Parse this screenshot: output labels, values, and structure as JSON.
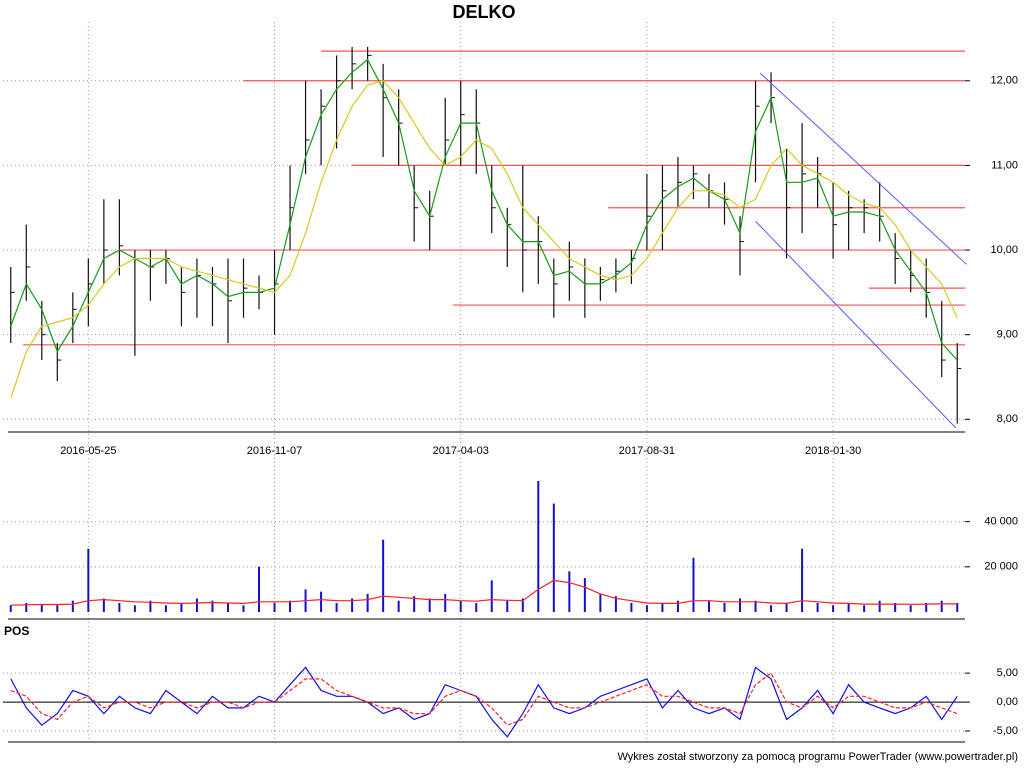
{
  "footer": "Wykres został stworzony za pomocą programu PowerTrader (www.powertrader.pl)",
  "chart_data": [
    {
      "type": "ohlc",
      "title": "DELKO",
      "categories": [
        null,
        null,
        null,
        null,
        null,
        "2016-05-25",
        null,
        null,
        null,
        null,
        null,
        null,
        null,
        null,
        null,
        null,
        null,
        "2016-11-07",
        null,
        null,
        null,
        null,
        null,
        null,
        null,
        null,
        null,
        null,
        null,
        "2017-04-03",
        null,
        null,
        null,
        null,
        null,
        null,
        null,
        null,
        null,
        null,
        null,
        "2017-08-31",
        null,
        null,
        null,
        null,
        null,
        null,
        null,
        null,
        null,
        null,
        null,
        "2018-01-30",
        null,
        null,
        null,
        null,
        null,
        null,
        null,
        null
      ],
      "high": [
        9.8,
        10.3,
        9.4,
        8.9,
        9.5,
        9.9,
        10.6,
        10.6,
        10.0,
        10.0,
        10.0,
        9.8,
        9.9,
        9.8,
        9.9,
        9.9,
        9.7,
        10.0,
        11.0,
        12.0,
        11.9,
        12.3,
        12.4,
        12.4,
        12.2,
        11.9,
        11.0,
        10.7,
        11.8,
        12.0,
        11.9,
        11.0,
        10.5,
        11.0,
        10.4,
        9.9,
        10.1,
        9.9,
        9.8,
        9.9,
        10.0,
        10.9,
        11.0,
        11.1,
        11.0,
        10.9,
        10.8,
        10.4,
        12.0,
        12.1,
        11.2,
        11.5,
        11.1,
        10.8,
        10.7,
        10.6,
        10.8,
        10.2,
        10.0,
        9.9,
        9.4,
        8.9
      ],
      "low": [
        8.9,
        9.4,
        8.7,
        8.45,
        8.9,
        9.1,
        9.6,
        9.7,
        8.75,
        9.4,
        9.6,
        9.1,
        9.2,
        9.1,
        8.9,
        9.2,
        9.3,
        9.0,
        10.0,
        10.9,
        11.0,
        11.2,
        11.9,
        12.0,
        11.1,
        11.0,
        10.1,
        10.0,
        11.0,
        11.0,
        10.9,
        10.2,
        9.8,
        9.5,
        9.6,
        9.2,
        9.4,
        9.2,
        9.4,
        9.5,
        9.6,
        10.0,
        10.0,
        10.5,
        10.6,
        10.5,
        10.3,
        9.7,
        10.8,
        11.5,
        9.9,
        10.2,
        10.5,
        9.9,
        10.0,
        10.2,
        10.1,
        9.6,
        9.5,
        9.2,
        8.5,
        7.95
      ],
      "close": [
        9.5,
        9.8,
        9.0,
        8.7,
        9.3,
        9.6,
        10.0,
        10.05,
        9.9,
        9.8,
        9.9,
        9.5,
        9.7,
        9.6,
        9.4,
        9.55,
        9.5,
        9.6,
        10.5,
        11.3,
        11.7,
        12.0,
        12.2,
        12.3,
        11.8,
        11.5,
        10.5,
        10.4,
        11.3,
        11.6,
        11.5,
        10.5,
        10.3,
        10.0,
        10.1,
        9.6,
        9.8,
        9.6,
        9.65,
        9.75,
        9.9,
        10.4,
        10.7,
        10.8,
        10.9,
        10.7,
        10.6,
        10.1,
        11.7,
        11.8,
        10.5,
        10.9,
        10.9,
        10.3,
        10.5,
        10.5,
        10.4,
        9.9,
        9.7,
        9.5,
        8.7,
        8.6
      ],
      "bar_color": "#111111",
      "series": [
        {
          "color": "#1a9a1a",
          "values": [
            9.1,
            9.6,
            9.3,
            8.8,
            9.1,
            9.5,
            9.9,
            10.0,
            9.9,
            9.8,
            9.9,
            9.6,
            9.7,
            9.6,
            9.45,
            9.5,
            9.5,
            9.55,
            10.3,
            11.1,
            11.6,
            11.9,
            12.1,
            12.25,
            11.9,
            11.5,
            10.7,
            10.4,
            11.1,
            11.5,
            11.5,
            10.7,
            10.3,
            10.1,
            10.1,
            9.7,
            9.75,
            9.6,
            9.6,
            9.7,
            9.85,
            10.3,
            10.6,
            10.75,
            10.85,
            10.7,
            10.6,
            10.2,
            11.4,
            11.8,
            10.8,
            10.8,
            10.85,
            10.4,
            10.45,
            10.45,
            10.4,
            10.0,
            9.75,
            9.5,
            8.9,
            8.7
          ]
        },
        {
          "color": "#d8c820",
          "values": [
            8.25,
            8.8,
            9.1,
            9.15,
            9.2,
            9.35,
            9.6,
            9.8,
            9.9,
            9.9,
            9.9,
            9.8,
            9.75,
            9.7,
            9.65,
            9.6,
            9.55,
            9.5,
            9.7,
            10.2,
            10.8,
            11.3,
            11.7,
            11.95,
            12.0,
            11.8,
            11.5,
            11.2,
            11.0,
            11.1,
            11.3,
            11.2,
            10.9,
            10.5,
            10.3,
            10.1,
            9.9,
            9.8,
            9.7,
            9.65,
            9.7,
            9.9,
            10.2,
            10.5,
            10.7,
            10.7,
            10.65,
            10.5,
            10.6,
            11.0,
            11.2,
            11.0,
            10.9,
            10.8,
            10.65,
            10.55,
            10.5,
            10.3,
            10.0,
            9.8,
            9.6,
            9.2
          ]
        }
      ],
      "levels": [
        {
          "value": 12.35,
          "start": 20,
          "color": "#ff5050"
        },
        {
          "value": 12.0,
          "start": 15,
          "color": "#ff5050"
        },
        {
          "value": 11.0,
          "start": 22,
          "color": "#ff5050"
        },
        {
          "value": 10.5,
          "start": 38.5,
          "color": "#ff5050"
        },
        {
          "value": 10.0,
          "start": 7,
          "color": "#ff5050"
        },
        {
          "value": 9.55,
          "start": 55.3,
          "color": "#ff5050"
        },
        {
          "value": 9.35,
          "start": 28.5,
          "color": "#ff5050"
        },
        {
          "value": 8.88,
          "start": 0.8,
          "color": "#ff5050"
        }
      ],
      "trendlines": [
        {
          "x0": 48.3,
          "y0": 12.09,
          "x1": 61.6,
          "y1": 9.83,
          "color": "#5a5af0"
        },
        {
          "x0": 48.0,
          "y0": 10.34,
          "x1": 60.9,
          "y1": 7.9,
          "color": "#5a5af0"
        }
      ],
      "ylim": [
        7.85,
        12.6
      ],
      "yticks": [
        {
          "value": 8,
          "label": "8,00"
        },
        {
          "value": 9,
          "label": "9,00"
        },
        {
          "value": 10,
          "label": "10,00"
        },
        {
          "value": 11,
          "label": "11,00"
        },
        {
          "value": 12,
          "label": "12,00"
        }
      ],
      "grid": true
    },
    {
      "type": "volume",
      "values": [
        3000,
        4000,
        3500,
        3000,
        5000,
        28000,
        6000,
        4000,
        3000,
        5000,
        3000,
        4000,
        6000,
        5000,
        4000,
        3000,
        20000,
        4000,
        5000,
        10000,
        9000,
        4000,
        6000,
        8000,
        32000,
        5000,
        7000,
        6000,
        8000,
        5000,
        4000,
        14000,
        5000,
        6000,
        58000,
        48000,
        18000,
        15000,
        8000,
        7000,
        4000,
        3000,
        4000,
        5000,
        24000,
        5000,
        4000,
        6000,
        5000,
        3000,
        4000,
        28000,
        4000,
        3000,
        4000,
        3000,
        5000,
        4000,
        3000,
        4000,
        5000,
        4000
      ],
      "color": "#1010d0",
      "series": [
        {
          "color": "#ff2020",
          "values": [
            3000,
            3200,
            3300,
            3300,
            3500,
            5000,
            5500,
            5000,
            4500,
            4300,
            4000,
            3800,
            4000,
            4200,
            4000,
            3800,
            4500,
            4500,
            4500,
            5000,
            5500,
            5000,
            5000,
            5500,
            7000,
            6500,
            6000,
            5500,
            5500,
            5000,
            4800,
            5500,
            5200,
            5000,
            10000,
            14000,
            13000,
            11000,
            8000,
            6000,
            5000,
            4000,
            3800,
            3800,
            5000,
            5000,
            4500,
            4500,
            4500,
            4000,
            3800,
            5000,
            4500,
            4000,
            3800,
            3500,
            3500,
            3500,
            3400,
            3500,
            3600,
            3600
          ]
        }
      ],
      "ylim": [
        0,
        58000
      ],
      "yticks": [
        {
          "value": 20000,
          "label": "20 000"
        },
        {
          "value": 40000,
          "label": "40 000"
        }
      ],
      "grid": true
    },
    {
      "type": "line",
      "title": "POS",
      "series": [
        {
          "color": "#1010e0",
          "dash": false,
          "values": [
            4,
            -1,
            -4,
            -2,
            2,
            1,
            -2,
            1,
            -1,
            -2,
            2,
            0,
            -2,
            1,
            -1,
            -1,
            1,
            0,
            3,
            6,
            2,
            1,
            1,
            0,
            -2,
            -1,
            -3,
            -2,
            3,
            2,
            1,
            -3,
            -6,
            -2,
            3,
            -1,
            -2,
            -1,
            1,
            2,
            3,
            4,
            -1,
            2,
            -1,
            -2,
            -1,
            -3,
            6,
            4,
            -3,
            -1,
            2,
            -2,
            3,
            0,
            -1,
            -2,
            -1,
            1,
            -3,
            1
          ]
        },
        {
          "color": "#ff2020",
          "dash": true,
          "values": [
            2,
            1,
            -2,
            -3,
            0,
            1,
            -1,
            0,
            0,
            -1,
            0,
            0,
            -1,
            0,
            0,
            -1,
            0,
            0,
            2,
            4,
            4,
            2,
            1,
            0,
            -1,
            -1,
            -2,
            -2,
            1,
            2,
            1,
            -1,
            -4,
            -3,
            1,
            0,
            -1,
            -1,
            0,
            1,
            2,
            3,
            1,
            1,
            0,
            -1,
            -1,
            -2,
            3,
            5,
            0,
            -1,
            1,
            -1,
            1,
            1,
            0,
            -1,
            -1,
            0,
            -1,
            -2
          ]
        }
      ],
      "zero_line": true,
      "ylim": [
        -6.9,
        9
      ],
      "yticks": [
        {
          "value": -5,
          "label": "-5,00"
        },
        {
          "value": 0,
          "label": "0,00"
        },
        {
          "value": 5,
          "label": "5,00"
        }
      ],
      "grid": true
    }
  ]
}
